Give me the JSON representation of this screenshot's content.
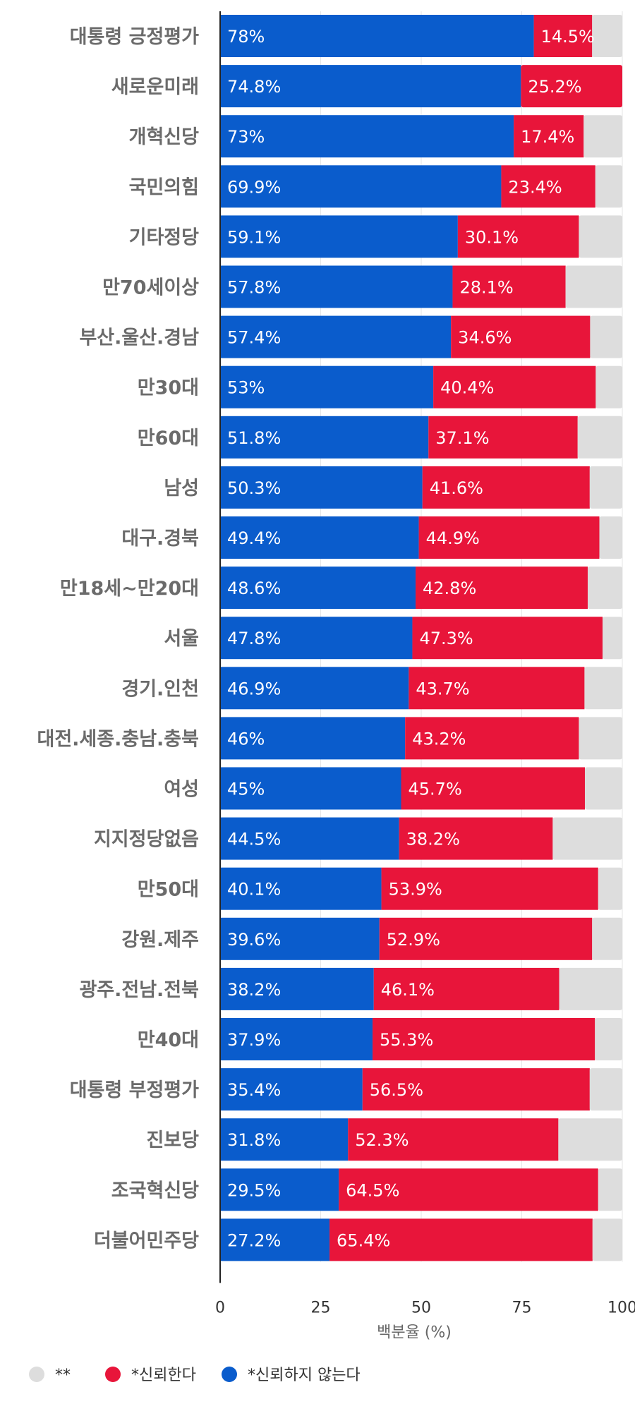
{
  "chart_data": {
    "type": "bar",
    "orientation": "horizontal",
    "stacked": true,
    "xlabel": "백분율 (%)",
    "xlim": [
      0,
      100
    ],
    "xticks": [
      0,
      25,
      50,
      75,
      100
    ],
    "grid": true,
    "legend_position": "bottom-left",
    "categories": [
      "대통령 긍정평가",
      "새로운미래",
      "개혁신당",
      "국민의힘",
      "기타정당",
      "만70세이상",
      "부산.울산.경남",
      "만30대",
      "만60대",
      "남성",
      "대구.경북",
      "만18세~만20대",
      "서울",
      "경기.인천",
      "대전.세종.충남.충북",
      "여성",
      "지지정당없음",
      "만50대",
      "강원.제주",
      "광주.전남.전북",
      "만40대",
      "대통령 부정평가",
      "진보당",
      "조국혁신당",
      "더불어민주당"
    ],
    "series": [
      {
        "name": "*신뢰하지 않는다",
        "color": "#0a5ccc",
        "values": [
          78,
          74.8,
          73,
          69.9,
          59.1,
          57.8,
          57.4,
          53,
          51.8,
          50.3,
          49.4,
          48.6,
          47.8,
          46.9,
          46,
          45,
          44.5,
          40.1,
          39.6,
          38.2,
          37.9,
          35.4,
          31.8,
          29.5,
          27.2
        ],
        "labels": [
          "78%",
          "74.8%",
          "73%",
          "69.9%",
          "59.1%",
          "57.8%",
          "57.4%",
          "53%",
          "51.8%",
          "50.3%",
          "49.4%",
          "48.6%",
          "47.8%",
          "46.9%",
          "46%",
          "45%",
          "44.5%",
          "40.1%",
          "39.6%",
          "38.2%",
          "37.9%",
          "35.4%",
          "31.8%",
          "29.5%",
          "27.2%"
        ]
      },
      {
        "name": "*신뢰한다",
        "color": "#e8153a",
        "values": [
          14.5,
          25.2,
          17.4,
          23.4,
          30.1,
          28.1,
          34.6,
          40.4,
          37.1,
          41.6,
          44.9,
          42.8,
          47.3,
          43.7,
          43.2,
          45.7,
          38.2,
          53.9,
          52.9,
          46.1,
          55.3,
          56.5,
          52.3,
          64.5,
          65.4
        ],
        "labels": [
          "14.5%",
          "25.2%",
          "17.4%",
          "23.4%",
          "30.1%",
          "28.1%",
          "34.6%",
          "40.4%",
          "37.1%",
          "41.6%",
          "44.9%",
          "42.8%",
          "47.3%",
          "43.7%",
          "43.2%",
          "45.7%",
          "38.2%",
          "53.9%",
          "52.9%",
          "46.1%",
          "55.3%",
          "56.5%",
          "52.3%",
          "64.5%",
          "65.4%"
        ]
      },
      {
        "name": "**",
        "color": "#dddddd",
        "values": [
          7.5,
          0,
          9.6,
          6.7,
          10.8,
          14.1,
          8,
          6.6,
          11.1,
          8.1,
          5.7,
          8.6,
          4.9,
          9.4,
          10.8,
          9.3,
          17.3,
          6,
          7.5,
          15.7,
          6.8,
          8.1,
          15.9,
          6,
          7.4
        ]
      }
    ],
    "legend": [
      {
        "name": "**",
        "color": "#dddddd"
      },
      {
        "name": "*신뢰한다",
        "color": "#e8153a"
      },
      {
        "name": "*신뢰하지 않는다",
        "color": "#0a5ccc"
      }
    ]
  }
}
